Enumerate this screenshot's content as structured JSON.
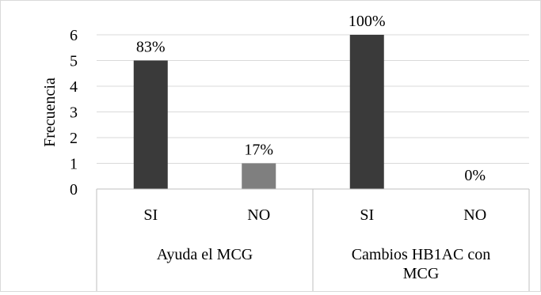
{
  "chart_data": {
    "type": "bar",
    "title": "",
    "xlabel": "",
    "ylabel": "Frecuencia",
    "ylim": [
      0,
      6
    ],
    "yticks": [
      "0",
      "1",
      "2",
      "3",
      "4",
      "5",
      "6"
    ],
    "grid": true,
    "legend": "none",
    "groups": [
      {
        "name": "Ayuda el MCG",
        "label_lines": [
          "Ayuda el MCG"
        ],
        "categories": [
          "SI",
          "NO"
        ]
      },
      {
        "name": "Cambios HB1AC con MCG",
        "label_lines": [
          "Cambios HB1AC con",
          "MCG"
        ],
        "categories": [
          "SI",
          "NO"
        ]
      }
    ],
    "bars": [
      {
        "group": "Ayuda el MCG",
        "category": "SI",
        "value": 5,
        "label": "83%",
        "color": "#3a3a3a"
      },
      {
        "group": "Ayuda el MCG",
        "category": "NO",
        "value": 1,
        "label": "17%",
        "color": "#7f7f7f"
      },
      {
        "group": "Cambios HB1AC con MCG",
        "category": "SI",
        "value": 6,
        "label": "100%",
        "color": "#3a3a3a"
      },
      {
        "group": "Cambios HB1AC con MCG",
        "category": "NO",
        "value": 0,
        "label": "0%",
        "color": "#7f7f7f"
      }
    ],
    "colors": {
      "grid": "#d9d9d9",
      "axis": "#bfbfbf"
    }
  }
}
